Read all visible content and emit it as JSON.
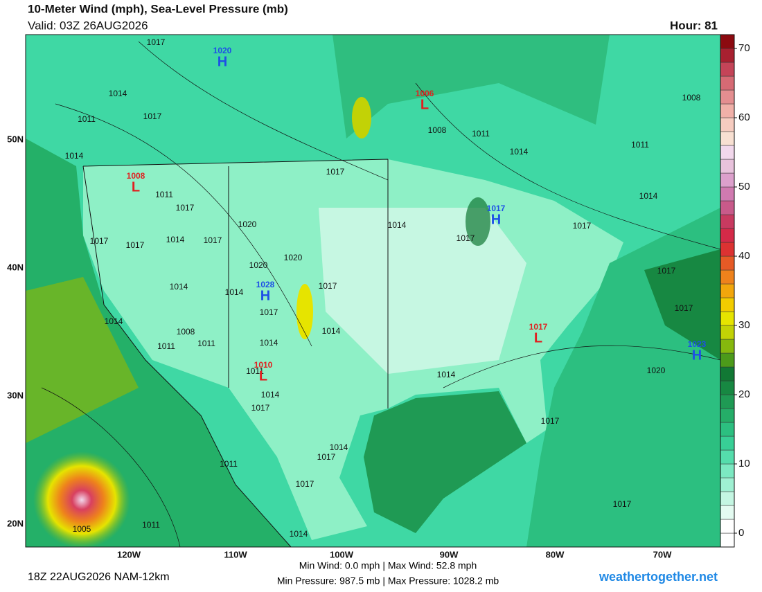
{
  "header": {
    "title": "10-Meter Wind (mph), Sea-Level Pressure (mb)",
    "valid": "Valid: 03Z 26AUG2026",
    "hour": "Hour: 81"
  },
  "map": {
    "lon_labels": [
      "120W",
      "110W",
      "100W",
      "90W",
      "80W",
      "70W"
    ],
    "lat_labels": [
      "50N",
      "40N",
      "30N",
      "20N"
    ],
    "centers": [
      {
        "type": "H",
        "value": "1020"
      },
      {
        "type": "L",
        "value": "1006"
      },
      {
        "type": "L",
        "value": "1008"
      },
      {
        "type": "H",
        "value": "1017"
      },
      {
        "type": "H",
        "value": "1028"
      },
      {
        "type": "L",
        "value": "1017"
      },
      {
        "type": "H",
        "value": "1023"
      },
      {
        "type": "L",
        "value": "1010"
      }
    ],
    "isobar_labels": [
      "1017",
      "1014",
      "1011",
      "1017",
      "1014",
      "1017",
      "1011",
      "1017",
      "1020",
      "1014",
      "1017",
      "1017",
      "1014",
      "1017",
      "1020",
      "1020",
      "1014",
      "1014",
      "1017",
      "1017",
      "1014",
      "1008",
      "1011",
      "1011",
      "1014",
      "1014",
      "1011",
      "1014",
      "1017",
      "1014",
      "1020",
      "1017",
      "1017",
      "1017",
      "1014",
      "1011",
      "1008",
      "1014",
      "1011",
      "1008",
      "1017",
      "1017",
      "1014",
      "1017",
      "1011",
      "1017",
      "1017",
      "1014",
      "1005",
      "1011"
    ]
  },
  "colorbar": {
    "lim": [
      -2,
      72
    ],
    "ticks": [
      0,
      10,
      20,
      30,
      40,
      50,
      60,
      70
    ],
    "colors": [
      "#ffffff",
      "#ffffff",
      "#e4fbf1",
      "#c4f6e2",
      "#9ff0d2",
      "#7ce9c2",
      "#55ddac",
      "#38cf96",
      "#2cbf80",
      "#25ad68",
      "#1f9a54",
      "#178842",
      "#117834",
      "#4c9a1a",
      "#86b80e",
      "#c2d206",
      "#e6e400",
      "#f2cc00",
      "#f2a60c",
      "#ee821c",
      "#e65a26",
      "#dc3232",
      "#d42a48",
      "#c83a60",
      "#c85a8a",
      "#d07ab0",
      "#dca0cc",
      "#e8c2dc",
      "#f2d8ec",
      "#f8e0d2",
      "#f6ccc0",
      "#f0b0a8",
      "#e48e90",
      "#d66a74",
      "#c44458",
      "#a82030",
      "#8c0a10"
    ]
  },
  "footer": {
    "run": "18Z 22AUG2026 NAM-12km",
    "stats_1": "Min Wind:   0.0 mph | Max Wind:  52.8 mph",
    "stats_2": "Min Pressure: 987.5 mb | Max Pressure: 1028.2 mb",
    "site": "weathertogether.net"
  }
}
